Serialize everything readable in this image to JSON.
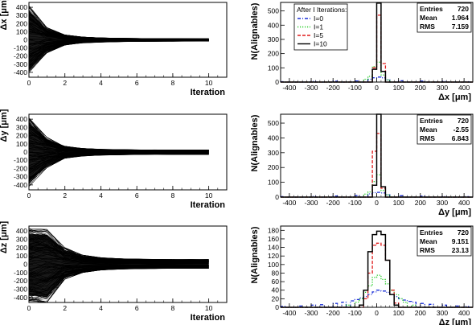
{
  "colors": {
    "l0": "#1a2fd8",
    "l1": "#22cc22",
    "l5": "#e01a1a",
    "l10": "#000000",
    "traj": "#000000"
  },
  "legend": {
    "title": "After I Iterations:",
    "entries": [
      {
        "label": "I=0",
        "color": "#1a2fd8",
        "dash": "dashdot"
      },
      {
        "label": "I=1",
        "color": "#22cc22",
        "dash": "dot"
      },
      {
        "label": "I=5",
        "color": "#e01a1a",
        "dash": "dash"
      },
      {
        "label": "I=10",
        "color": "#000000",
        "dash": "solid"
      }
    ]
  },
  "chart_data": [
    {
      "type": "line",
      "id": "conv-dx",
      "xlabel": "Iteration",
      "ylabel": "Δx [μm]",
      "xlim": [
        0,
        11
      ],
      "ylim": [
        -460,
        460
      ],
      "xticks": [
        0,
        2,
        4,
        6,
        8,
        10
      ],
      "yticks": [
        -400,
        -300,
        -200,
        -100,
        0,
        100,
        200,
        300,
        400
      ],
      "x": [
        0,
        1,
        2,
        3,
        4,
        5,
        6,
        7,
        8,
        9,
        10
      ],
      "n_tracks": 720,
      "envelope_upper": [
        420,
        150,
        60,
        35,
        25,
        20,
        18,
        16,
        15,
        14,
        14
      ],
      "envelope_lower": [
        -430,
        -160,
        -65,
        -40,
        -30,
        -25,
        -22,
        -20,
        -19,
        -18,
        -18
      ]
    },
    {
      "type": "bar",
      "id": "hist-dx",
      "xlabel": "Δx [μm]",
      "ylabel": "N(Alignables)",
      "xlim": [
        -440,
        440
      ],
      "ylim": [
        0,
        560
      ],
      "xticks": [
        -400,
        -300,
        -200,
        -100,
        0,
        100,
        200,
        300,
        400
      ],
      "yticks": [
        0,
        100,
        200,
        300,
        400,
        500
      ],
      "bin_width": 20,
      "stats": {
        "Entries": "720",
        "Mean": "1.964",
        "RMS": "7.159"
      },
      "series": [
        {
          "name": "I=0",
          "bins": [
            [
              -440,
              3
            ],
            [
              -300,
              5
            ],
            [
              -200,
              6
            ],
            [
              -100,
              8
            ],
            [
              -40,
              20
            ],
            [
              -20,
              30
            ],
            [
              0,
              35
            ],
            [
              20,
              30
            ],
            [
              40,
              15
            ],
            [
              100,
              9
            ],
            [
              200,
              7
            ],
            [
              300,
              5
            ],
            [
              400,
              3
            ]
          ]
        },
        {
          "name": "I=1",
          "bins": [
            [
              -60,
              20
            ],
            [
              -40,
              40
            ],
            [
              -20,
              110
            ],
            [
              0,
              140
            ],
            [
              20,
              50
            ],
            [
              40,
              15
            ]
          ]
        },
        {
          "name": "I=5",
          "bins": [
            [
              -20,
              100
            ],
            [
              0,
              470
            ],
            [
              20,
              130
            ]
          ]
        },
        {
          "name": "I=10",
          "bins": [
            [
              -20,
              90
            ],
            [
              0,
              555
            ],
            [
              20,
              75
            ]
          ]
        }
      ]
    },
    {
      "type": "line",
      "id": "conv-dy",
      "xlabel": "Iteration",
      "ylabel": "Δy [μm]",
      "xlim": [
        0,
        11
      ],
      "ylim": [
        -460,
        460
      ],
      "xticks": [
        0,
        2,
        4,
        6,
        8,
        10
      ],
      "yticks": [
        -400,
        -300,
        -200,
        -100,
        0,
        100,
        200,
        300,
        400
      ],
      "x": [
        0,
        1,
        2,
        3,
        4,
        5,
        6,
        7,
        8,
        9,
        10
      ],
      "n_tracks": 720,
      "envelope_upper": [
        420,
        180,
        70,
        45,
        35,
        30,
        28,
        27,
        26,
        26,
        26
      ],
      "envelope_lower": [
        -430,
        -190,
        -75,
        -50,
        -40,
        -35,
        -32,
        -30,
        -30,
        -30,
        -30
      ]
    },
    {
      "type": "bar",
      "id": "hist-dy",
      "xlabel": "Δy [μm]",
      "ylabel": "N(Alignables)",
      "xlim": [
        -440,
        440
      ],
      "ylim": [
        0,
        560
      ],
      "xticks": [
        -400,
        -300,
        -200,
        -100,
        0,
        100,
        200,
        300,
        400
      ],
      "yticks": [
        0,
        100,
        200,
        300,
        400,
        500
      ],
      "bin_width": 20,
      "stats": {
        "Entries": "720",
        "Mean": "-2.55",
        "RMS": "6.843"
      },
      "series": [
        {
          "name": "I=0",
          "bins": [
            [
              -440,
              3
            ],
            [
              -300,
              5
            ],
            [
              -200,
              7
            ],
            [
              -100,
              10
            ],
            [
              -40,
              22
            ],
            [
              -20,
              30
            ],
            [
              0,
              32
            ],
            [
              20,
              28
            ],
            [
              40,
              15
            ],
            [
              100,
              9
            ],
            [
              200,
              6
            ],
            [
              300,
              4
            ],
            [
              400,
              3
            ]
          ]
        },
        {
          "name": "I=1",
          "bins": [
            [
              -60,
              20
            ],
            [
              -40,
              35
            ],
            [
              -20,
              105
            ],
            [
              0,
              150
            ],
            [
              20,
              45
            ],
            [
              40,
              15
            ]
          ]
        },
        {
          "name": "I=5",
          "bins": [
            [
              -20,
              310
            ],
            [
              0,
              430
            ],
            [
              20,
              60
            ]
          ]
        },
        {
          "name": "I=10",
          "bins": [
            [
              -20,
              80
            ],
            [
              0,
              560
            ],
            [
              20,
              70
            ]
          ]
        }
      ]
    },
    {
      "type": "line",
      "id": "conv-dz",
      "xlabel": "Iteration",
      "ylabel": "Δz [μm]",
      "xlim": [
        0,
        11
      ],
      "ylim": [
        -460,
        460
      ],
      "xticks": [
        0,
        2,
        4,
        6,
        8,
        10
      ],
      "yticks": [
        -400,
        -300,
        -200,
        -100,
        0,
        100,
        200,
        300,
        400
      ],
      "x": [
        0,
        1,
        2,
        3,
        4,
        5,
        6,
        7,
        8,
        9,
        10
      ],
      "n_tracks": 720,
      "envelope_upper": [
        430,
        420,
        200,
        110,
        80,
        70,
        65,
        62,
        60,
        60,
        60
      ],
      "envelope_lower": [
        -440,
        -460,
        -180,
        -100,
        -70,
        -60,
        -55,
        -52,
        -50,
        -50,
        -50
      ]
    },
    {
      "type": "bar",
      "id": "hist-dz",
      "xlabel": "Δz [μm]",
      "ylabel": "N(Alignables)",
      "xlim": [
        -440,
        440
      ],
      "ylim": [
        0,
        190
      ],
      "xticks": [
        -400,
        -300,
        -200,
        -100,
        0,
        100,
        200,
        300,
        400
      ],
      "yticks": [
        0,
        20,
        40,
        60,
        80,
        100,
        120,
        140,
        160,
        180
      ],
      "bin_width": 20,
      "stats": {
        "Entries": "720",
        "Mean": "9.151",
        "RMS": "23.13"
      },
      "series": [
        {
          "name": "I=0",
          "bins": [
            [
              -440,
              2
            ],
            [
              -360,
              3
            ],
            [
              -300,
              5
            ],
            [
              -260,
              6
            ],
            [
              -200,
              9
            ],
            [
              -160,
              12
            ],
            [
              -120,
              15
            ],
            [
              -100,
              18
            ],
            [
              -80,
              22
            ],
            [
              -60,
              25
            ],
            [
              -40,
              30
            ],
            [
              -20,
              36
            ],
            [
              0,
              40
            ],
            [
              20,
              38
            ],
            [
              40,
              35
            ],
            [
              60,
              30
            ],
            [
              80,
              25
            ],
            [
              100,
              20
            ],
            [
              120,
              17
            ],
            [
              140,
              14
            ],
            [
              160,
              12
            ],
            [
              200,
              9
            ],
            [
              240,
              7
            ],
            [
              300,
              5
            ],
            [
              360,
              3
            ],
            [
              400,
              2
            ]
          ]
        },
        {
          "name": "I=1",
          "bins": [
            [
              -140,
              5
            ],
            [
              -100,
              12
            ],
            [
              -80,
              20
            ],
            [
              -60,
              35
            ],
            [
              -40,
              50
            ],
            [
              -20,
              70
            ],
            [
              0,
              75
            ],
            [
              20,
              65
            ],
            [
              40,
              55
            ],
            [
              60,
              40
            ],
            [
              80,
              30
            ],
            [
              100,
              20
            ],
            [
              120,
              12
            ],
            [
              160,
              5
            ]
          ]
        },
        {
          "name": "I=5",
          "bins": [
            [
              -60,
              20
            ],
            [
              -40,
              80
            ],
            [
              -20,
              145
            ],
            [
              0,
              150
            ],
            [
              20,
              145
            ],
            [
              40,
              110
            ],
            [
              60,
              40
            ],
            [
              80,
              10
            ]
          ]
        },
        {
          "name": "I=10",
          "bins": [
            [
              -80,
              5
            ],
            [
              -60,
              40
            ],
            [
              -40,
              130
            ],
            [
              -20,
              170
            ],
            [
              0,
              178
            ],
            [
              20,
              170
            ],
            [
              40,
              110
            ],
            [
              60,
              30
            ],
            [
              80,
              5
            ]
          ]
        }
      ]
    }
  ]
}
